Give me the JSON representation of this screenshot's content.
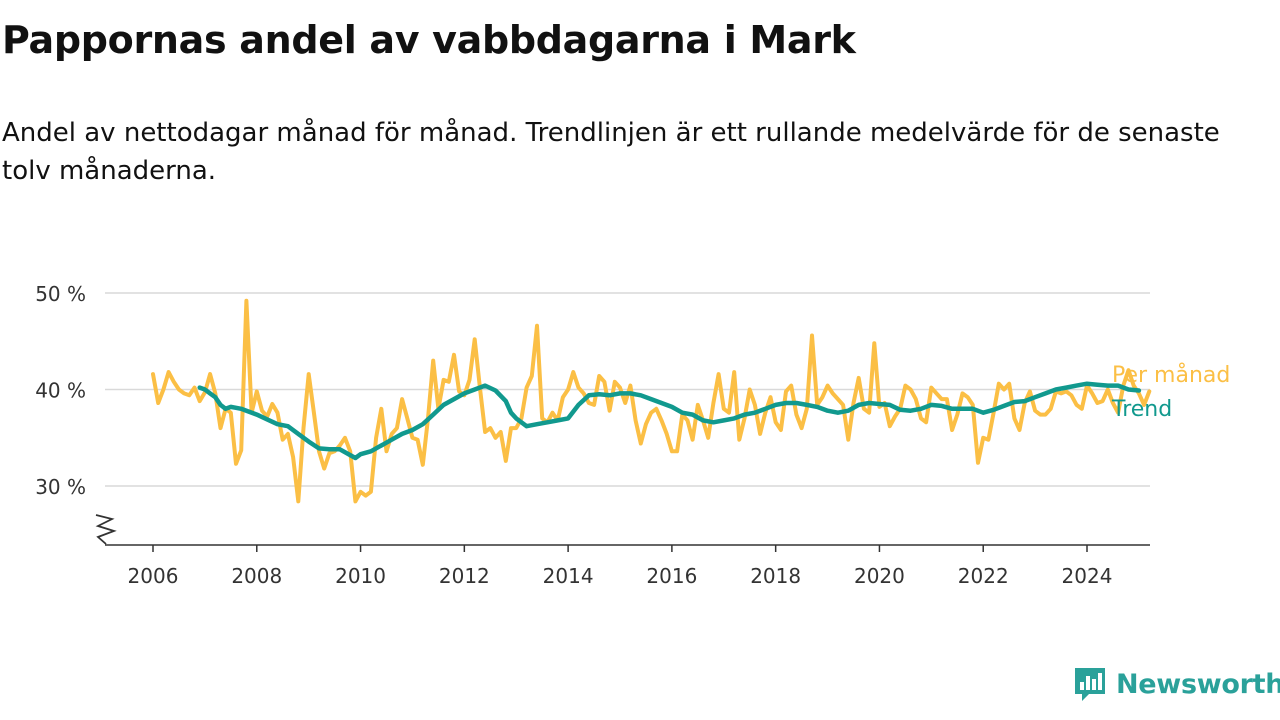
{
  "header": {
    "title": "Pappornas andel av vabbdagarna i Mark",
    "subtitle": "Andel av nettodagar månad för månad. Trendlinjen är ett rullande medelvärde för de senaste tolv månaderna."
  },
  "brand": {
    "name": "Newsworthy",
    "icon": "newsworthy-logo-icon"
  },
  "colors": {
    "monthly": "#fbbf45",
    "trend": "#11998e",
    "grid": "#d9d9d9",
    "axis": "#333333"
  },
  "chart_data": {
    "type": "line",
    "title": "Pappornas andel av vabbdagarna i Mark",
    "subtitle": "Andel av nettodagar månad för månad. Trendlinjen är ett rullande medelvärde för de senaste tolv månaderna.",
    "xlabel": "",
    "ylabel": "",
    "x_range": [
      2005.2,
      2025.2
    ],
    "ylim": [
      24,
      50
    ],
    "y_ticks": [
      30,
      40,
      50
    ],
    "y_tick_labels": [
      "30 %",
      "40 %",
      "50 %"
    ],
    "x_ticks": [
      2006,
      2008,
      2010,
      2012,
      2014,
      2016,
      2018,
      2020,
      2022,
      2024
    ],
    "x_tick_labels": [
      "2006",
      "2008",
      "2010",
      "2012",
      "2014",
      "2016",
      "2018",
      "2020",
      "2022",
      "2024"
    ],
    "grid": true,
    "axis_break": true,
    "legend": "direct-labels-right",
    "series": [
      {
        "name": "Per månad",
        "color": "#fbbf45",
        "points": [
          [
            2006.0,
            41.6
          ],
          [
            2006.1,
            38.6
          ],
          [
            2006.2,
            40.0
          ],
          [
            2006.3,
            41.8
          ],
          [
            2006.4,
            40.8
          ],
          [
            2006.5,
            40.0
          ],
          [
            2006.6,
            39.6
          ],
          [
            2006.7,
            39.4
          ],
          [
            2006.8,
            40.2
          ],
          [
            2006.9,
            38.8
          ],
          [
            2007.0,
            39.7
          ],
          [
            2007.1,
            41.6
          ],
          [
            2007.2,
            39.6
          ],
          [
            2007.3,
            36.0
          ],
          [
            2007.4,
            38.0
          ],
          [
            2007.5,
            37.6
          ],
          [
            2007.6,
            32.3
          ],
          [
            2007.7,
            33.7
          ],
          [
            2007.8,
            49.2
          ],
          [
            2007.9,
            37.6
          ],
          [
            2008.0,
            39.8
          ],
          [
            2008.1,
            37.8
          ],
          [
            2008.2,
            37.2
          ],
          [
            2008.3,
            38.5
          ],
          [
            2008.4,
            37.6
          ],
          [
            2008.5,
            34.8
          ],
          [
            2008.6,
            35.4
          ],
          [
            2008.7,
            33.0
          ],
          [
            2008.8,
            28.4
          ],
          [
            2008.9,
            36.0
          ],
          [
            2009.0,
            41.6
          ],
          [
            2009.1,
            37.6
          ],
          [
            2009.2,
            33.6
          ],
          [
            2009.3,
            31.8
          ],
          [
            2009.4,
            33.4
          ],
          [
            2009.5,
            33.6
          ],
          [
            2009.6,
            34.2
          ],
          [
            2009.7,
            35.0
          ],
          [
            2009.8,
            33.6
          ],
          [
            2009.9,
            28.4
          ],
          [
            2010.0,
            29.4
          ],
          [
            2010.1,
            29.0
          ],
          [
            2010.2,
            29.4
          ],
          [
            2010.3,
            35.0
          ],
          [
            2010.4,
            38.0
          ],
          [
            2010.5,
            33.6
          ],
          [
            2010.6,
            35.4
          ],
          [
            2010.7,
            36.0
          ],
          [
            2010.8,
            39.0
          ],
          [
            2010.9,
            37.0
          ],
          [
            2011.0,
            35.0
          ],
          [
            2011.1,
            34.8
          ],
          [
            2011.2,
            32.2
          ],
          [
            2011.3,
            37.0
          ],
          [
            2011.4,
            43.0
          ],
          [
            2011.5,
            38.0
          ],
          [
            2011.6,
            41.0
          ],
          [
            2011.7,
            40.8
          ],
          [
            2011.8,
            43.6
          ],
          [
            2011.9,
            39.8
          ],
          [
            2012.0,
            39.4
          ],
          [
            2012.1,
            41.0
          ],
          [
            2012.2,
            45.2
          ],
          [
            2012.3,
            40.2
          ],
          [
            2012.4,
            35.6
          ],
          [
            2012.5,
            36.0
          ],
          [
            2012.6,
            35.0
          ],
          [
            2012.7,
            35.6
          ],
          [
            2012.8,
            32.6
          ],
          [
            2012.9,
            36.0
          ],
          [
            2013.0,
            36.0
          ],
          [
            2013.1,
            37.0
          ],
          [
            2013.2,
            40.2
          ],
          [
            2013.3,
            41.4
          ],
          [
            2013.4,
            46.6
          ],
          [
            2013.5,
            37.0
          ],
          [
            2013.6,
            36.6
          ],
          [
            2013.7,
            37.6
          ],
          [
            2013.8,
            36.8
          ],
          [
            2013.9,
            39.2
          ],
          [
            2014.0,
            40.0
          ],
          [
            2014.1,
            41.8
          ],
          [
            2014.2,
            40.2
          ],
          [
            2014.3,
            39.6
          ],
          [
            2014.4,
            38.6
          ],
          [
            2014.5,
            38.4
          ],
          [
            2014.6,
            41.4
          ],
          [
            2014.7,
            40.8
          ],
          [
            2014.8,
            37.8
          ],
          [
            2014.9,
            40.8
          ],
          [
            2015.0,
            40.2
          ],
          [
            2015.1,
            38.6
          ],
          [
            2015.2,
            40.4
          ],
          [
            2015.3,
            36.8
          ],
          [
            2015.4,
            34.4
          ],
          [
            2015.5,
            36.4
          ],
          [
            2015.6,
            37.6
          ],
          [
            2015.7,
            38.0
          ],
          [
            2015.8,
            36.8
          ],
          [
            2015.9,
            35.4
          ],
          [
            2016.0,
            33.6
          ],
          [
            2016.1,
            33.6
          ],
          [
            2016.2,
            37.4
          ],
          [
            2016.3,
            36.8
          ],
          [
            2016.4,
            34.8
          ],
          [
            2016.5,
            38.4
          ],
          [
            2016.6,
            36.8
          ],
          [
            2016.7,
            35.0
          ],
          [
            2016.8,
            38.6
          ],
          [
            2016.9,
            41.6
          ],
          [
            2017.0,
            38.0
          ],
          [
            2017.1,
            37.6
          ],
          [
            2017.2,
            41.8
          ],
          [
            2017.3,
            34.8
          ],
          [
            2017.4,
            37.0
          ],
          [
            2017.5,
            40.0
          ],
          [
            2017.6,
            38.4
          ],
          [
            2017.7,
            35.4
          ],
          [
            2017.8,
            37.6
          ],
          [
            2017.9,
            39.2
          ],
          [
            2018.0,
            36.6
          ],
          [
            2018.1,
            35.8
          ],
          [
            2018.2,
            39.8
          ],
          [
            2018.3,
            40.4
          ],
          [
            2018.4,
            37.4
          ],
          [
            2018.5,
            36.0
          ],
          [
            2018.6,
            38.0
          ],
          [
            2018.7,
            45.6
          ],
          [
            2018.8,
            38.4
          ],
          [
            2018.9,
            39.2
          ],
          [
            2019.0,
            40.4
          ],
          [
            2019.1,
            39.6
          ],
          [
            2019.2,
            39.0
          ],
          [
            2019.3,
            38.4
          ],
          [
            2019.4,
            34.8
          ],
          [
            2019.5,
            38.6
          ],
          [
            2019.6,
            41.2
          ],
          [
            2019.7,
            38.0
          ],
          [
            2019.8,
            37.6
          ],
          [
            2019.9,
            44.8
          ],
          [
            2020.0,
            38.2
          ],
          [
            2020.1,
            38.6
          ],
          [
            2020.2,
            36.2
          ],
          [
            2020.3,
            37.2
          ],
          [
            2020.4,
            38.0
          ],
          [
            2020.5,
            40.4
          ],
          [
            2020.6,
            40.0
          ],
          [
            2020.7,
            39.0
          ],
          [
            2020.8,
            37.0
          ],
          [
            2020.9,
            36.6
          ],
          [
            2021.0,
            40.2
          ],
          [
            2021.1,
            39.6
          ],
          [
            2021.2,
            39.0
          ],
          [
            2021.3,
            39.0
          ],
          [
            2021.4,
            35.8
          ],
          [
            2021.5,
            37.4
          ],
          [
            2021.6,
            39.6
          ],
          [
            2021.7,
            39.2
          ],
          [
            2021.8,
            38.4
          ],
          [
            2021.9,
            32.4
          ],
          [
            2022.0,
            35.0
          ],
          [
            2022.1,
            34.8
          ],
          [
            2022.2,
            37.6
          ],
          [
            2022.3,
            40.6
          ],
          [
            2022.4,
            40.0
          ],
          [
            2022.5,
            40.6
          ],
          [
            2022.6,
            37.0
          ],
          [
            2022.7,
            35.8
          ],
          [
            2022.8,
            38.6
          ],
          [
            2022.9,
            39.8
          ],
          [
            2023.0,
            37.8
          ],
          [
            2023.1,
            37.4
          ],
          [
            2023.2,
            37.4
          ],
          [
            2023.3,
            38.0
          ],
          [
            2023.4,
            39.8
          ],
          [
            2023.5,
            39.6
          ],
          [
            2023.6,
            39.8
          ],
          [
            2023.7,
            39.4
          ],
          [
            2023.8,
            38.4
          ],
          [
            2023.9,
            38.0
          ],
          [
            2024.0,
            40.4
          ],
          [
            2024.1,
            39.6
          ],
          [
            2024.2,
            38.6
          ],
          [
            2024.3,
            38.8
          ],
          [
            2024.4,
            40.0
          ],
          [
            2024.5,
            38.6
          ],
          [
            2024.6,
            37.6
          ],
          [
            2024.7,
            40.4
          ],
          [
            2024.8,
            42.0
          ],
          [
            2024.9,
            40.4
          ],
          [
            2025.0,
            39.6
          ],
          [
            2025.1,
            38.4
          ],
          [
            2025.2,
            39.8
          ]
        ]
      },
      {
        "name": "Trend",
        "color": "#11998e",
        "points": [
          [
            2006.9,
            40.2
          ],
          [
            2007.0,
            40.0
          ],
          [
            2007.1,
            39.6
          ],
          [
            2007.2,
            39.2
          ],
          [
            2007.3,
            38.4
          ],
          [
            2007.4,
            38.0
          ],
          [
            2007.5,
            38.2
          ],
          [
            2007.6,
            38.1
          ],
          [
            2007.7,
            38.0
          ],
          [
            2007.8,
            37.8
          ],
          [
            2008.0,
            37.4
          ],
          [
            2008.2,
            36.9
          ],
          [
            2008.4,
            36.4
          ],
          [
            2008.6,
            36.2
          ],
          [
            2008.8,
            35.4
          ],
          [
            2009.0,
            34.6
          ],
          [
            2009.2,
            33.9
          ],
          [
            2009.4,
            33.8
          ],
          [
            2009.6,
            33.8
          ],
          [
            2009.8,
            33.2
          ],
          [
            2009.9,
            32.9
          ],
          [
            2010.0,
            33.3
          ],
          [
            2010.2,
            33.6
          ],
          [
            2010.4,
            34.2
          ],
          [
            2010.6,
            34.8
          ],
          [
            2010.8,
            35.4
          ],
          [
            2011.0,
            35.8
          ],
          [
            2011.2,
            36.4
          ],
          [
            2011.4,
            37.4
          ],
          [
            2011.6,
            38.4
          ],
          [
            2011.8,
            39.0
          ],
          [
            2012.0,
            39.6
          ],
          [
            2012.2,
            40.0
          ],
          [
            2012.4,
            40.4
          ],
          [
            2012.6,
            39.9
          ],
          [
            2012.8,
            38.8
          ],
          [
            2012.9,
            37.6
          ],
          [
            2013.0,
            37.0
          ],
          [
            2013.2,
            36.2
          ],
          [
            2013.4,
            36.4
          ],
          [
            2013.6,
            36.6
          ],
          [
            2013.8,
            36.8
          ],
          [
            2014.0,
            37.0
          ],
          [
            2014.2,
            38.4
          ],
          [
            2014.4,
            39.4
          ],
          [
            2014.6,
            39.5
          ],
          [
            2014.8,
            39.4
          ],
          [
            2015.0,
            39.6
          ],
          [
            2015.2,
            39.6
          ],
          [
            2015.4,
            39.4
          ],
          [
            2015.6,
            39.0
          ],
          [
            2015.8,
            38.6
          ],
          [
            2016.0,
            38.2
          ],
          [
            2016.2,
            37.6
          ],
          [
            2016.4,
            37.4
          ],
          [
            2016.6,
            36.8
          ],
          [
            2016.8,
            36.6
          ],
          [
            2017.0,
            36.8
          ],
          [
            2017.2,
            37.0
          ],
          [
            2017.4,
            37.4
          ],
          [
            2017.6,
            37.6
          ],
          [
            2017.8,
            38.0
          ],
          [
            2018.0,
            38.4
          ],
          [
            2018.2,
            38.6
          ],
          [
            2018.4,
            38.6
          ],
          [
            2018.6,
            38.4
          ],
          [
            2018.8,
            38.2
          ],
          [
            2019.0,
            37.8
          ],
          [
            2019.2,
            37.6
          ],
          [
            2019.4,
            37.8
          ],
          [
            2019.6,
            38.4
          ],
          [
            2019.8,
            38.6
          ],
          [
            2020.0,
            38.5
          ],
          [
            2020.2,
            38.4
          ],
          [
            2020.4,
            37.9
          ],
          [
            2020.6,
            37.8
          ],
          [
            2020.8,
            38.0
          ],
          [
            2021.0,
            38.4
          ],
          [
            2021.2,
            38.3
          ],
          [
            2021.4,
            38.0
          ],
          [
            2021.6,
            38.0
          ],
          [
            2021.8,
            38.0
          ],
          [
            2022.0,
            37.6
          ],
          [
            2022.2,
            37.9
          ],
          [
            2022.4,
            38.3
          ],
          [
            2022.6,
            38.7
          ],
          [
            2022.8,
            38.8
          ],
          [
            2023.0,
            39.2
          ],
          [
            2023.2,
            39.6
          ],
          [
            2023.4,
            40.0
          ],
          [
            2023.6,
            40.2
          ],
          [
            2023.8,
            40.4
          ],
          [
            2024.0,
            40.6
          ],
          [
            2024.2,
            40.5
          ],
          [
            2024.4,
            40.4
          ],
          [
            2024.6,
            40.4
          ],
          [
            2024.8,
            40.0
          ],
          [
            2025.0,
            39.9
          ]
        ]
      }
    ]
  }
}
